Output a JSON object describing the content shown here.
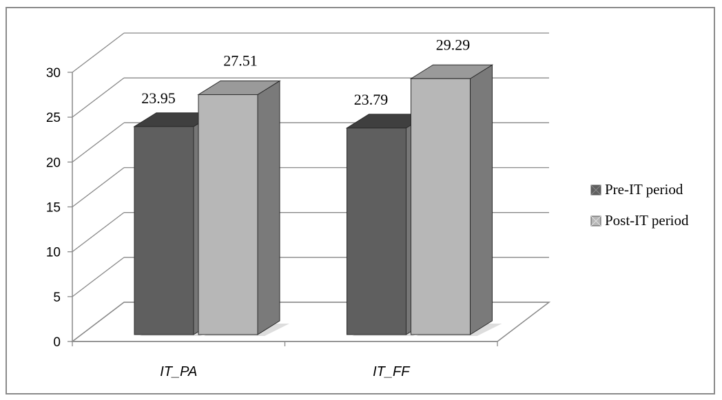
{
  "chart_data": {
    "type": "bar",
    "categories": [
      "IT_PA",
      "IT_FF"
    ],
    "series": [
      {
        "name": "Pre-IT period",
        "values": [
          23.95,
          23.79
        ],
        "color": "#5f5f5f"
      },
      {
        "name": "Post-IT period",
        "values": [
          27.51,
          29.29
        ],
        "color": "#b7b7b7"
      }
    ],
    "data_labels": [
      "23.95",
      "27.51",
      "23.79",
      "29.29"
    ],
    "y_ticks": [
      "0",
      "5",
      "10",
      "15",
      "20",
      "25",
      "30"
    ],
    "ylim": [
      0,
      30
    ],
    "grid": true,
    "legend_position": "right",
    "style": "3d-column"
  }
}
